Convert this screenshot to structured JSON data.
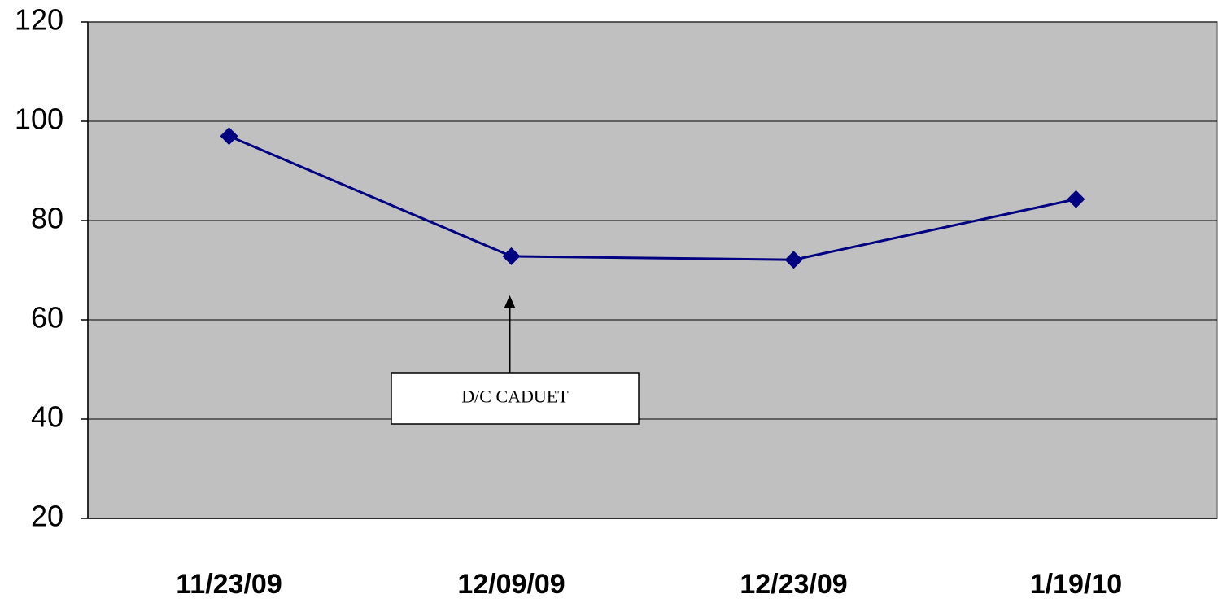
{
  "chart_data": {
    "type": "line",
    "categories": [
      "11/23/09",
      "12/09/09",
      "12/23/09",
      "1/19/10"
    ],
    "values": [
      97,
      72.8,
      72.1,
      84.3
    ],
    "color": "#000080",
    "ylim": [
      20,
      120
    ],
    "yticks": [
      20,
      40,
      60,
      80,
      100,
      120
    ],
    "grid": true,
    "annotations": [
      {
        "text": "D/C CADUET",
        "category": 1
      }
    ]
  }
}
